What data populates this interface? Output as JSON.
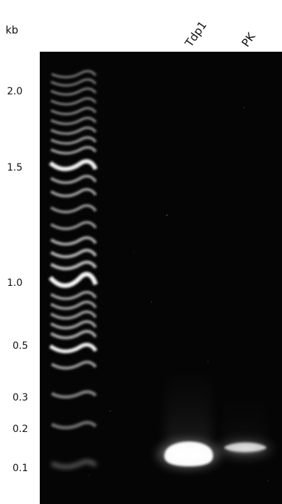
{
  "unit_label": "kb",
  "size_markers": [
    {
      "label": "2.0"
    },
    {
      "label": "1.5"
    },
    {
      "label": "1.0"
    },
    {
      "label": "0.5"
    },
    {
      "label": "0.3"
    },
    {
      "label": "0.2"
    },
    {
      "label": "0.1"
    }
  ],
  "lanes": [
    {
      "label": "Tdp1"
    },
    {
      "label": "PK"
    }
  ],
  "colors": {
    "gel_background": "#050505",
    "band": "#ffffff"
  }
}
